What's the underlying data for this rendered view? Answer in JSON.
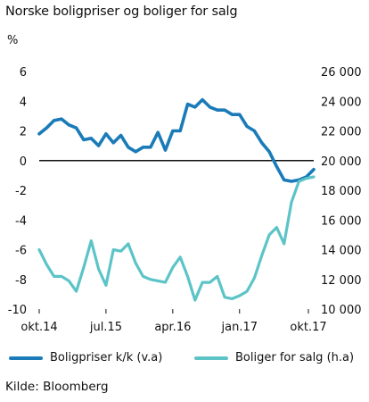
{
  "chart_data": {
    "type": "line",
    "title": "Norske boligpriser og boliger for salg",
    "left_unit_label": "%",
    "x_ticks": [
      "okt.14",
      "jul.15",
      "apr.16",
      "jan.17",
      "okt.17"
    ],
    "left_ylim": [
      -10,
      6
    ],
    "left_yticks": [
      6,
      4,
      2,
      0,
      -2,
      -4,
      -6,
      -8,
      -10
    ],
    "right_ylim": [
      10000,
      26000
    ],
    "right_yticks": [
      "26 000",
      "24 000",
      "22 000",
      "20 000",
      "18 000",
      "16 000",
      "14 000",
      "12 000",
      "10 000"
    ],
    "zero_line": true,
    "series": [
      {
        "name": "Boligpriser k/k (v.a)",
        "axis": "left",
        "color": "#1a7bb8",
        "values": [
          1.8,
          2.2,
          2.7,
          2.8,
          2.4,
          2.2,
          1.4,
          1.5,
          1.0,
          1.8,
          1.2,
          1.7,
          0.9,
          0.6,
          0.9,
          0.9,
          1.9,
          0.7,
          2.0,
          2.0,
          3.8,
          3.6,
          4.1,
          3.6,
          3.4,
          3.4,
          3.1,
          3.1,
          2.3,
          2.0,
          1.2,
          0.6,
          -0.4,
          -1.3,
          -1.4,
          -1.3,
          -1.1,
          -0.6
        ]
      },
      {
        "name": "Boliger for salg (h.a)",
        "axis": "right",
        "color": "#5cc4c7",
        "values": [
          14000,
          13000,
          12200,
          12200,
          11900,
          11200,
          12800,
          14600,
          12700,
          11600,
          14000,
          13900,
          14400,
          13100,
          12200,
          12000,
          11900,
          11800,
          12800,
          13500,
          12200,
          10600,
          11800,
          11800,
          12200,
          10800,
          10700,
          10900,
          11200,
          12100,
          13600,
          15000,
          15500,
          14400,
          17200,
          18600,
          18800,
          18900
        ]
      }
    ]
  },
  "legend": {
    "item1": "Boligpriser k/k (v.a)",
    "item2": "Boliger for salg (h.a)"
  },
  "source": "Kilde: Bloomberg"
}
